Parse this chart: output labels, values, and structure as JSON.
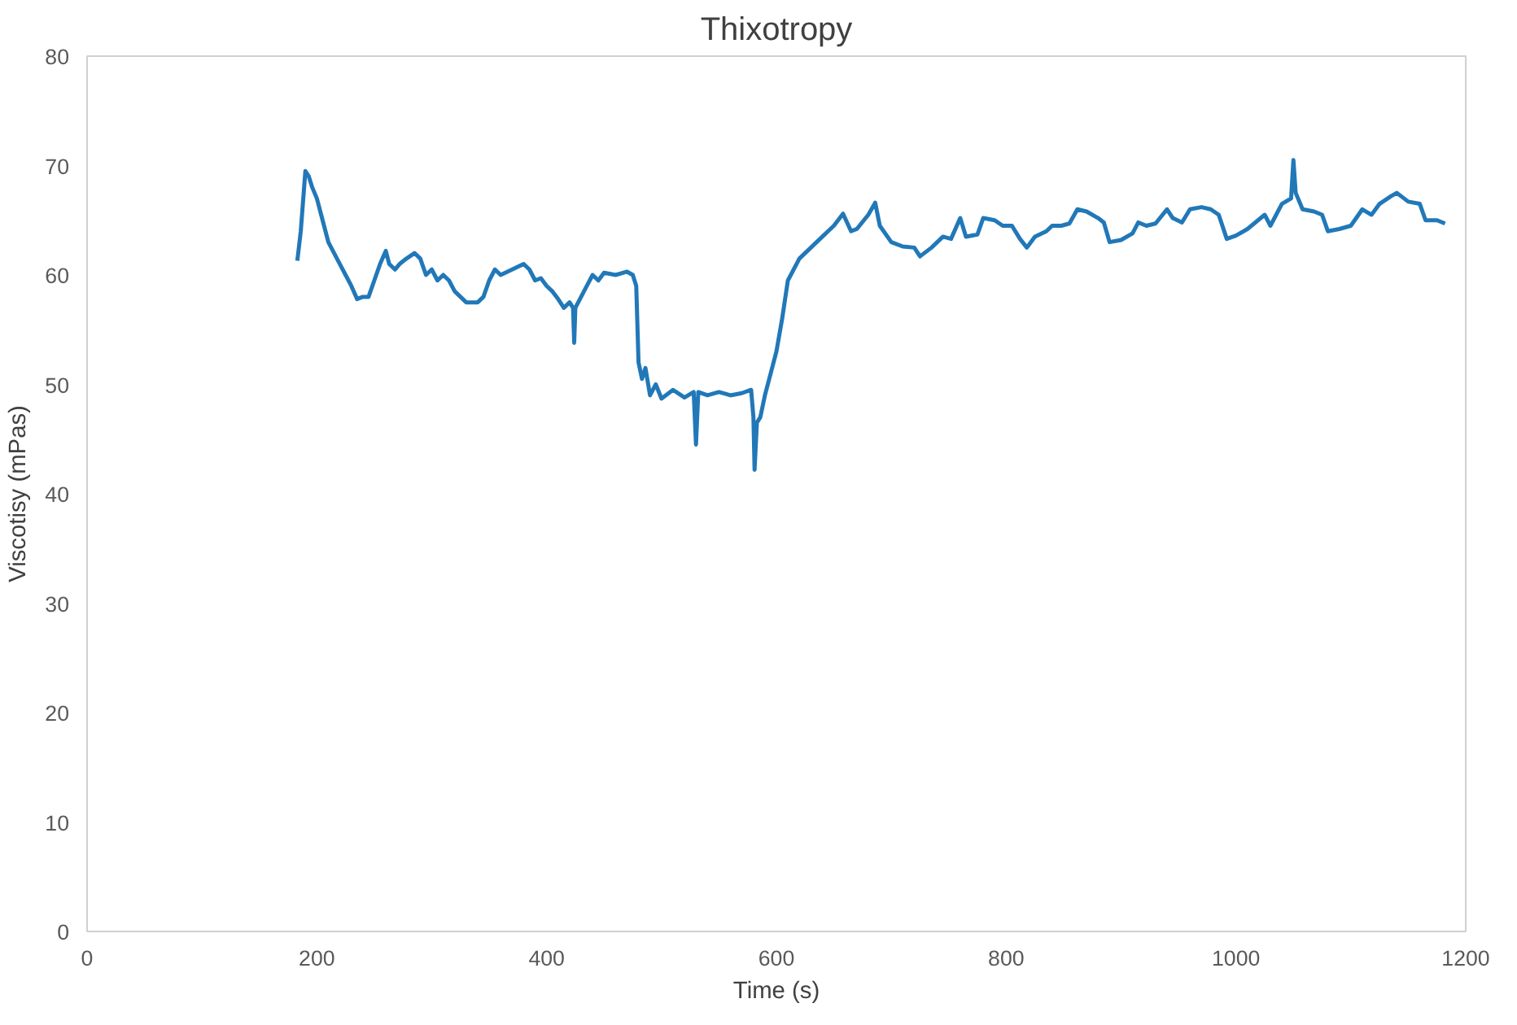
{
  "chart_data": {
    "type": "line",
    "title": "Thixotropy",
    "xlabel": "Time (s)",
    "ylabel": "Viscotisy (mPas)",
    "xlim": [
      0,
      1200
    ],
    "xticks": [
      0,
      200,
      400,
      600,
      800,
      1000,
      1200
    ],
    "ylim": [
      0,
      80
    ],
    "yticks": [
      0,
      10,
      20,
      30,
      40,
      50,
      60,
      70,
      80
    ],
    "series": [
      {
        "color": "#2178b8",
        "x": [
          183,
          186,
          190,
          193,
          196,
          200,
          205,
          210,
          215,
          220,
          225,
          230,
          235,
          240,
          245,
          250,
          255,
          260,
          263,
          268,
          272,
          278,
          285,
          290,
          295,
          300,
          305,
          310,
          315,
          320,
          330,
          340,
          345,
          350,
          355,
          360,
          370,
          380,
          385,
          390,
          395,
          400,
          405,
          410,
          415,
          420,
          423,
          424,
          425,
          430,
          435,
          440,
          445,
          450,
          460,
          470,
          475,
          478,
          480,
          483,
          486,
          490,
          495,
          500,
          510,
          520,
          528,
          530,
          532,
          540,
          550,
          560,
          570,
          578,
          580,
          581,
          583,
          586,
          590,
          595,
          600,
          605,
          610,
          620,
          630,
          640,
          650,
          658,
          665,
          670,
          680,
          686,
          690,
          700,
          710,
          720,
          725,
          735,
          745,
          752,
          760,
          765,
          775,
          780,
          790,
          797,
          805,
          812,
          818,
          825,
          835,
          840,
          848,
          855,
          862,
          870,
          880,
          885,
          890,
          900,
          910,
          915,
          922,
          930,
          940,
          945,
          953,
          960,
          970,
          978,
          985,
          992,
          1000,
          1010,
          1025,
          1030,
          1040,
          1048,
          1050,
          1052,
          1058,
          1068,
          1075,
          1080,
          1090,
          1100,
          1110,
          1118,
          1125,
          1135,
          1140,
          1150,
          1160,
          1165,
          1175,
          1182
        ],
        "values": [
          61.3,
          64,
          69.5,
          69,
          68,
          67,
          65,
          63,
          62,
          61,
          60,
          59,
          57.8,
          58,
          58,
          59.5,
          61,
          62.2,
          61,
          60.5,
          61,
          61.5,
          62,
          61.5,
          60,
          60.5,
          59.5,
          60,
          59.5,
          58.5,
          57.5,
          57.5,
          58,
          59.5,
          60.5,
          60,
          60.5,
          61,
          60.5,
          59.5,
          59.7,
          59,
          58.5,
          57.8,
          57,
          57.5,
          57,
          53.8,
          57,
          58,
          59,
          60,
          59.5,
          60.2,
          60,
          60.3,
          60,
          59,
          52,
          50.5,
          51.5,
          49,
          50,
          48.7,
          49.5,
          48.8,
          49.3,
          44.5,
          49.3,
          49,
          49.3,
          49,
          49.2,
          49.5,
          47,
          42.2,
          46.5,
          47,
          49,
          51,
          53,
          56,
          59.5,
          61.5,
          62.5,
          63.5,
          64.5,
          65.6,
          64,
          64.2,
          65.5,
          66.6,
          64.5,
          63,
          62.6,
          62.5,
          61.7,
          62.5,
          63.5,
          63.3,
          65.2,
          63.5,
          63.7,
          65.2,
          65,
          64.5,
          64.5,
          63.3,
          62.5,
          63.5,
          64,
          64.5,
          64.5,
          64.7,
          66,
          65.8,
          65.2,
          64.8,
          63,
          63.2,
          63.8,
          64.8,
          64.5,
          64.7,
          66,
          65.2,
          64.8,
          66,
          66.2,
          66,
          65.5,
          63.3,
          63.6,
          64.2,
          65.5,
          64.5,
          66.5,
          67,
          70.5,
          67.5,
          66,
          65.8,
          65.5,
          64,
          64.2,
          64.5,
          66,
          65.5,
          66.5,
          67.2,
          67.5,
          66.7,
          66.5,
          65,
          65,
          64.7
        ]
      }
    ]
  }
}
